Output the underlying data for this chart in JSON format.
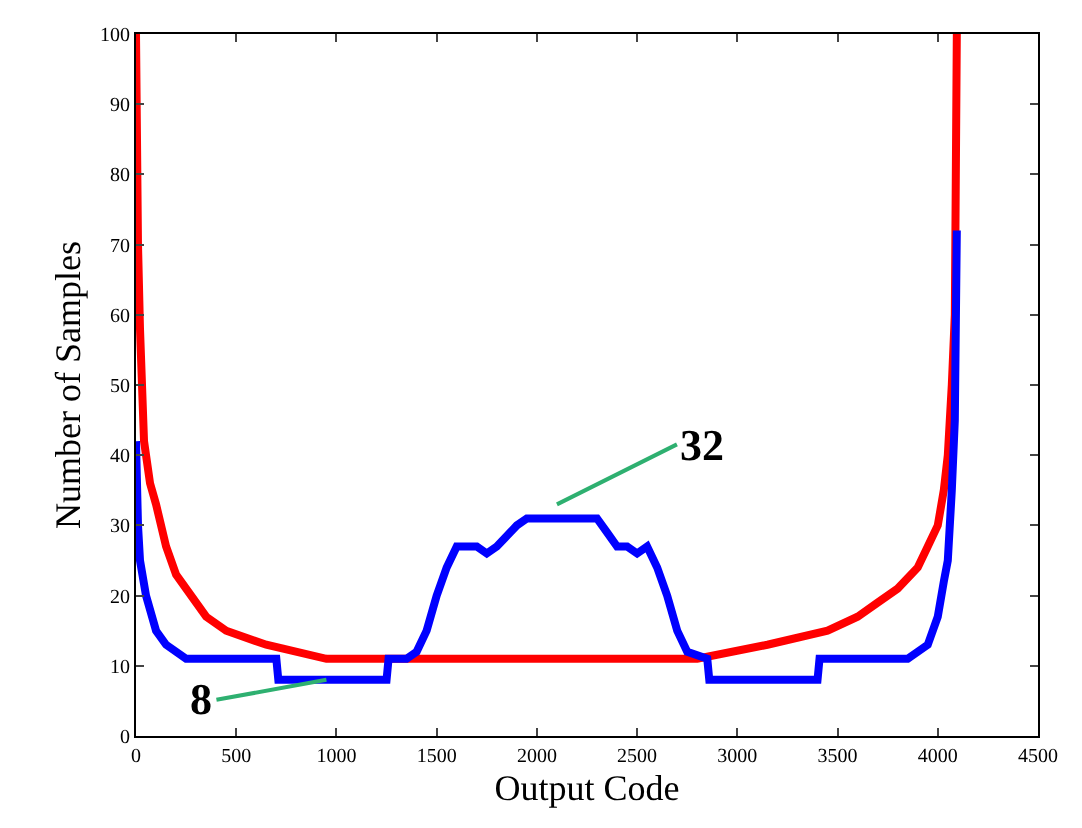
{
  "chart_data": {
    "type": "line",
    "xlabel": "Output Code",
    "ylabel": "Number of Samples",
    "xlim": [
      0,
      4500
    ],
    "ylim": [
      0,
      100
    ],
    "xticks": [
      0,
      500,
      1000,
      1500,
      2000,
      2500,
      3000,
      3500,
      4000,
      4500
    ],
    "yticks": [
      0,
      10,
      20,
      30,
      40,
      50,
      60,
      70,
      80,
      90,
      100
    ],
    "legend": false,
    "marker": "none",
    "line_style": "solid",
    "series": [
      {
        "color": "#ff0000",
        "x": [
          0,
          10,
          20,
          40,
          70,
          100,
          150,
          200,
          250,
          300,
          350,
          450,
          650,
          950,
          2000,
          2800,
          3150,
          3450,
          3600,
          3700,
          3800,
          3900,
          3950,
          4000,
          4030,
          4050,
          4070,
          4085,
          4095
        ],
        "values": [
          100,
          70,
          58,
          42,
          36,
          33,
          27,
          23,
          21,
          19,
          17,
          15,
          13,
          11,
          11,
          11,
          13,
          15,
          17,
          19,
          21,
          24,
          27,
          30,
          35,
          40,
          50,
          60,
          100
        ]
      },
      {
        "color": "#0000ff",
        "x": [
          0,
          10,
          20,
          50,
          100,
          150,
          250,
          700,
          710,
          1250,
          1260,
          1350,
          1400,
          1450,
          1500,
          1550,
          1600,
          1700,
          1750,
          1800,
          1900,
          1950,
          2300,
          2350,
          2400,
          2450,
          2500,
          2550,
          2600,
          2650,
          2700,
          2750,
          2850,
          2860,
          3400,
          3410,
          3850,
          3900,
          3950,
          4000,
          4030,
          4050,
          4070,
          4085,
          4095
        ],
        "values": [
          42,
          30,
          25,
          20,
          15,
          13,
          11,
          11,
          8,
          8,
          11,
          11,
          12,
          15,
          20,
          24,
          27,
          27,
          26,
          27,
          30,
          31,
          31,
          29,
          27,
          27,
          26,
          27,
          24,
          20,
          15,
          12,
          11,
          8,
          8,
          11,
          11,
          12,
          13,
          17,
          22,
          25,
          35,
          45,
          72
        ]
      }
    ],
    "annotations": [
      {
        "text": "32",
        "x": 2100,
        "y": 33
      },
      {
        "text": "8",
        "x": 950,
        "y": 8
      }
    ]
  }
}
